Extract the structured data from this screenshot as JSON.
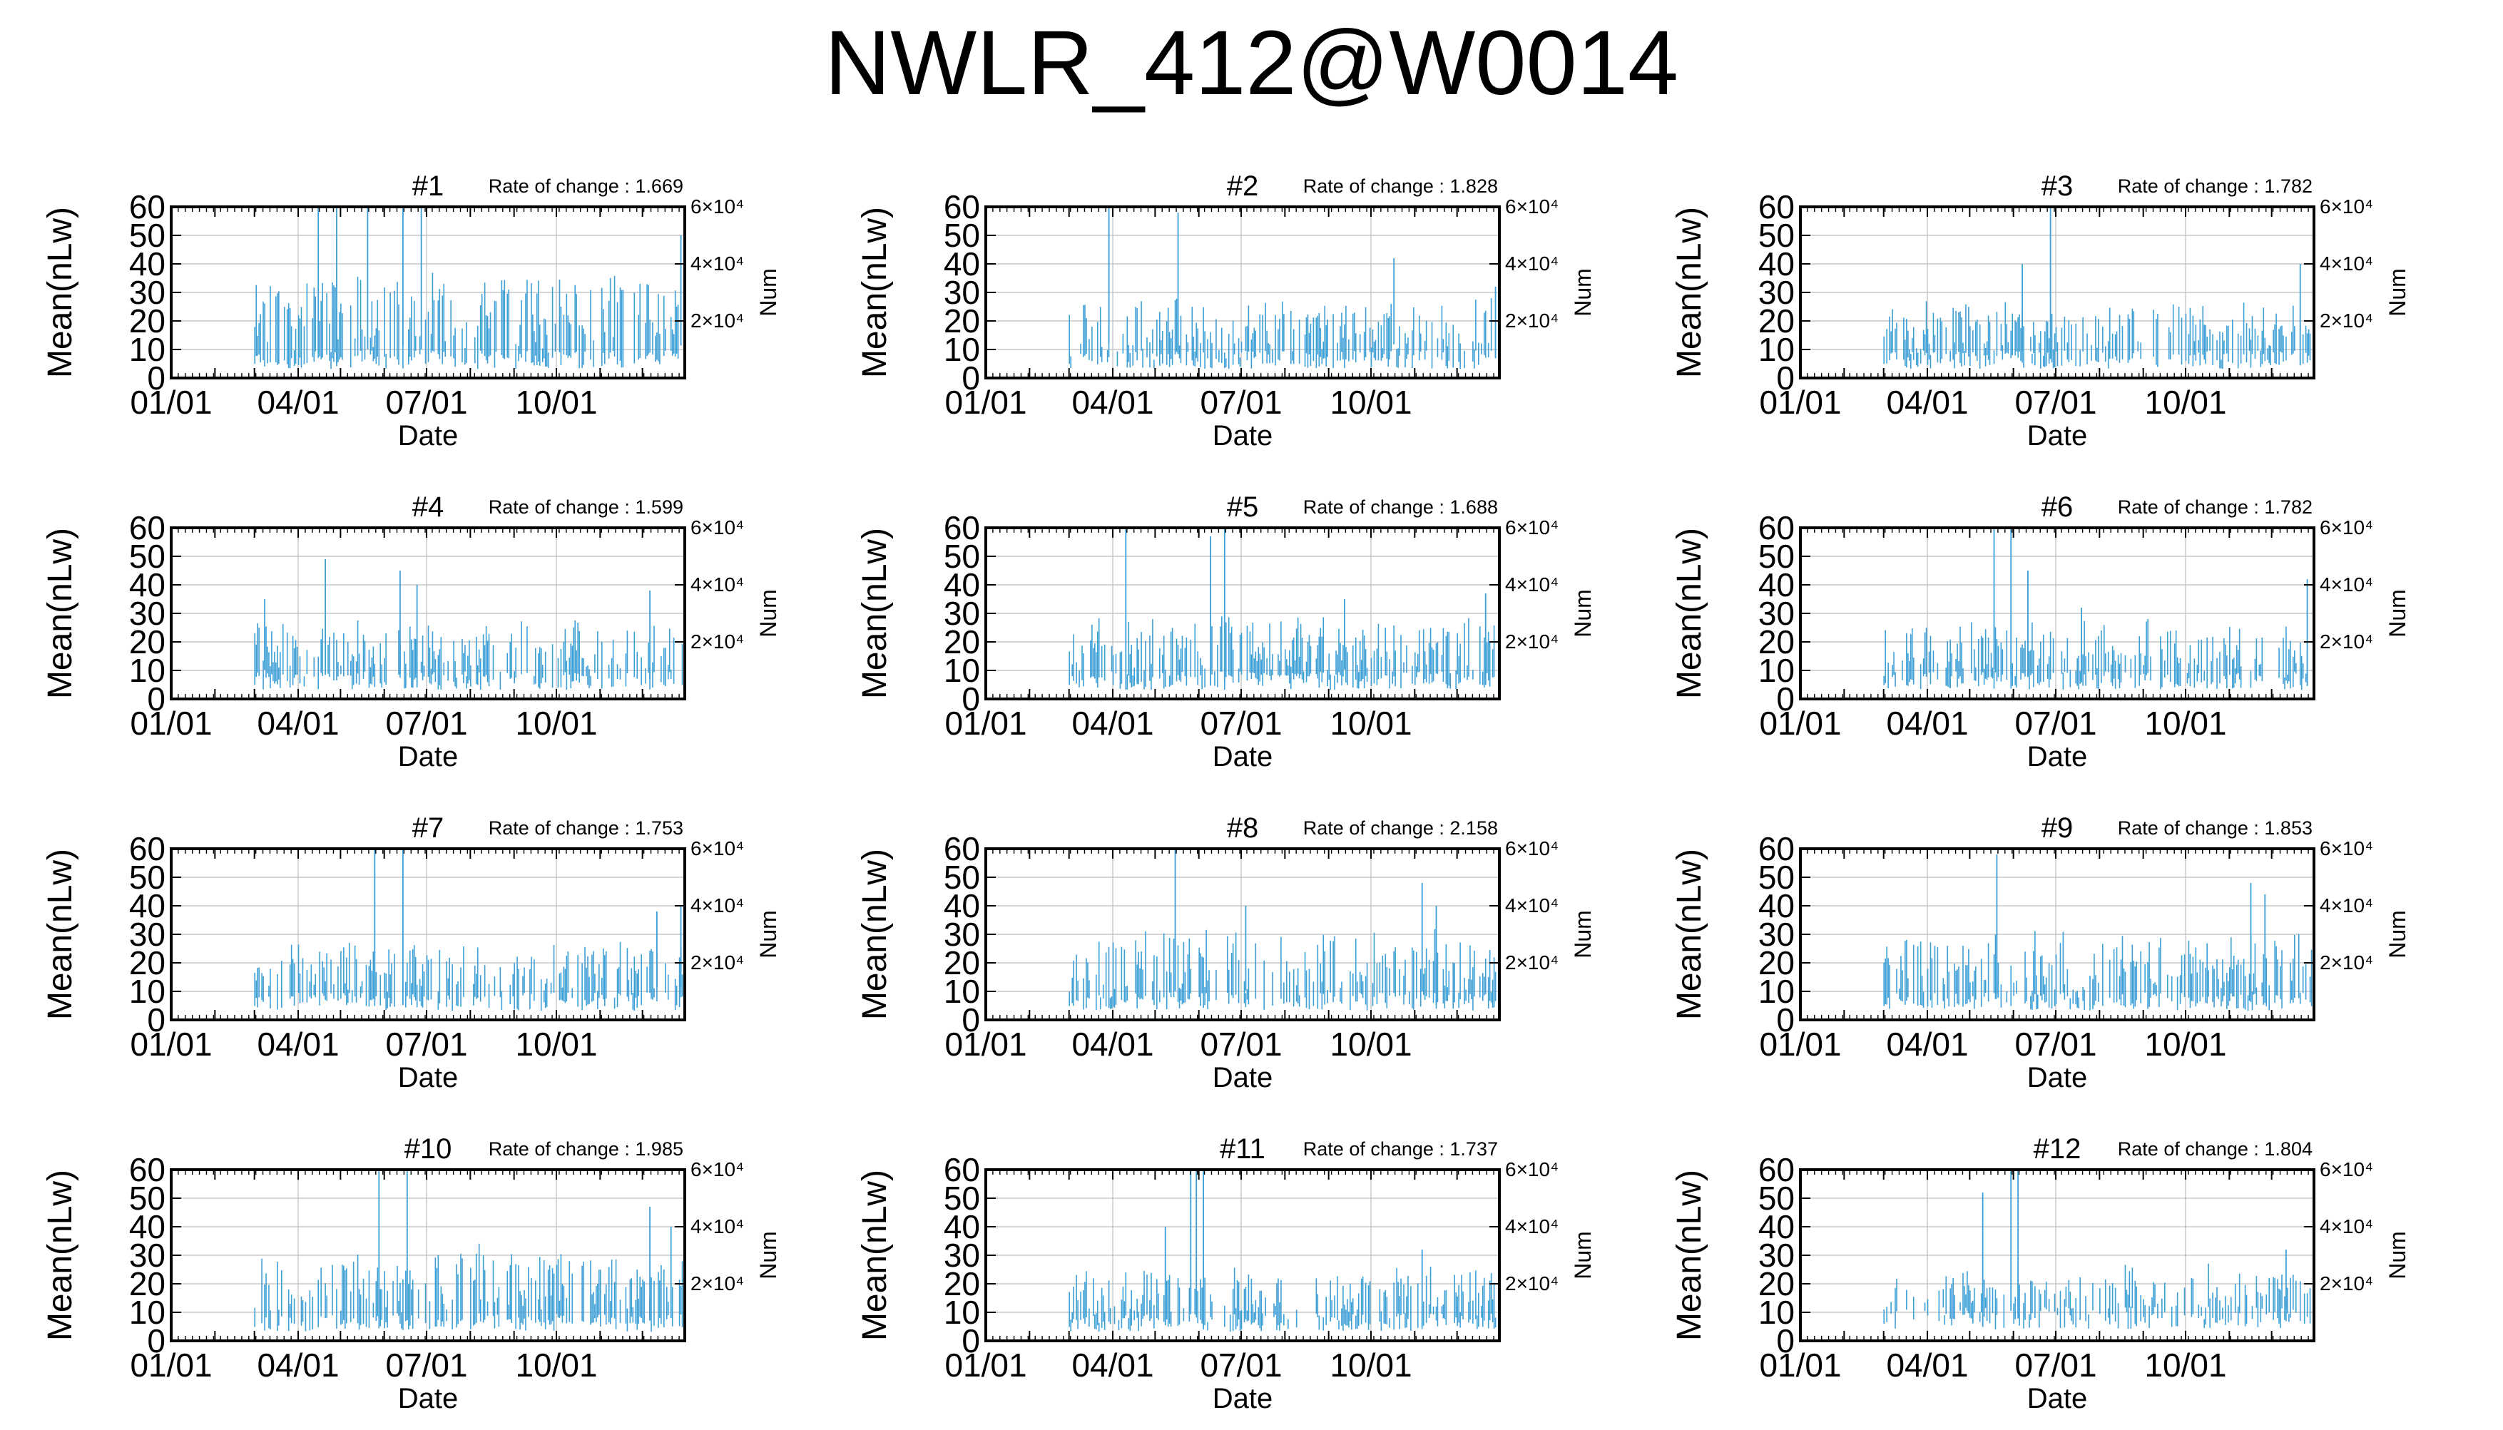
{
  "page": {
    "title": "NWLR_412@W0014"
  },
  "chart_data": [
    {
      "type": "bar",
      "title": "#1",
      "annotation": "Rate of change : 1.669",
      "xlabel": "Date",
      "ylabel": "Mean(nLw)",
      "y2label": "Num",
      "xticks": [
        "01/01",
        "04/01",
        "07/01",
        "10/01"
      ],
      "yticks": [
        "0",
        "10",
        "20",
        "30",
        "40",
        "50",
        "60"
      ],
      "ylim": [
        0,
        60
      ],
      "grid": true,
      "y2lim": [
        0,
        60000
      ],
      "y2ticks": [
        {
          "value": 20000,
          "label": "2×10⁴"
        },
        {
          "value": 40000,
          "label": "4×10⁴"
        },
        {
          "value": 60000,
          "label": "6×10⁴"
        }
      ],
      "x_range_days": [
        1,
        365
      ],
      "data_start_day": 60,
      "data_end_day": 363,
      "bar_color": "#3c9fd6",
      "density": 0.55,
      "seed": 11,
      "bands": [
        [
          8,
          38
        ]
      ],
      "spikes": [
        [
          105,
          60
        ],
        [
          118,
          60
        ],
        [
          140,
          60
        ],
        [
          165,
          60
        ],
        [
          178,
          60
        ],
        [
          362,
          50
        ]
      ]
    },
    {
      "type": "bar",
      "title": "#2",
      "annotation": "Rate of change : 1.828",
      "xlabel": "Date",
      "ylabel": "Mean(nLw)",
      "y2label": "Num",
      "xticks": [
        "01/01",
        "04/01",
        "07/01",
        "10/01"
      ],
      "yticks": [
        "0",
        "10",
        "20",
        "30",
        "40",
        "50",
        "60"
      ],
      "ylim": [
        0,
        60
      ],
      "grid": true,
      "y2lim": [
        0,
        60000
      ],
      "y2ticks": [
        {
          "value": 20000,
          "label": "2×10⁴"
        },
        {
          "value": 40000,
          "label": "4×10⁴"
        },
        {
          "value": 60000,
          "label": "6×10⁴"
        }
      ],
      "x_range_days": [
        1,
        365
      ],
      "data_start_day": 60,
      "data_end_day": 363,
      "bar_color": "#3c9fd6",
      "density": 0.55,
      "seed": 22,
      "bands": [
        [
          8,
          28
        ]
      ],
      "spikes": [
        [
          88,
          60
        ],
        [
          137,
          58
        ],
        [
          290,
          42
        ],
        [
          362,
          32
        ]
      ]
    },
    {
      "type": "bar",
      "title": "#3",
      "annotation": "Rate of change : 1.782",
      "xlabel": "Date",
      "ylabel": "Mean(nLw)",
      "y2label": "Num",
      "xticks": [
        "01/01",
        "04/01",
        "07/01",
        "10/01"
      ],
      "yticks": [
        "0",
        "10",
        "20",
        "30",
        "40",
        "50",
        "60"
      ],
      "ylim": [
        0,
        60
      ],
      "grid": true,
      "y2lim": [
        0,
        60000
      ],
      "y2ticks": [
        {
          "value": 20000,
          "label": "2×10⁴"
        },
        {
          "value": 40000,
          "label": "4×10⁴"
        },
        {
          "value": 60000,
          "label": "6×10⁴"
        }
      ],
      "x_range_days": [
        1,
        365
      ],
      "data_start_day": 60,
      "data_end_day": 363,
      "bar_color": "#3c9fd6",
      "density": 0.55,
      "seed": 33,
      "bands": [
        [
          8,
          28
        ]
      ],
      "spikes": [
        [
          158,
          40
        ],
        [
          178,
          60
        ],
        [
          355,
          40
        ]
      ]
    },
    {
      "type": "bar",
      "title": "#4",
      "annotation": "Rate of change : 1.599",
      "xlabel": "Date",
      "ylabel": "Mean(nLw)",
      "y2label": "Num",
      "xticks": [
        "01/01",
        "04/01",
        "07/01",
        "10/01"
      ],
      "yticks": [
        "0",
        "10",
        "20",
        "30",
        "40",
        "50",
        "60"
      ],
      "ylim": [
        0,
        60
      ],
      "grid": true,
      "y2lim": [
        0,
        60000
      ],
      "y2ticks": [
        {
          "value": 20000,
          "label": "2×10⁴"
        },
        {
          "value": 40000,
          "label": "4×10⁴"
        },
        {
          "value": 60000,
          "label": "6×10⁴"
        }
      ],
      "x_range_days": [
        1,
        365
      ],
      "data_start_day": 60,
      "data_end_day": 363,
      "bar_color": "#3c9fd6",
      "density": 0.55,
      "seed": 44,
      "bands": [
        [
          8,
          28
        ]
      ],
      "spikes": [
        [
          67,
          35
        ],
        [
          110,
          49
        ],
        [
          163,
          45
        ],
        [
          175,
          40
        ],
        [
          340,
          38
        ]
      ]
    },
    {
      "type": "bar",
      "title": "#5",
      "annotation": "Rate of change : 1.688",
      "xlabel": "Date",
      "ylabel": "Mean(nLw)",
      "y2label": "Num",
      "xticks": [
        "01/01",
        "04/01",
        "07/01",
        "10/01"
      ],
      "yticks": [
        "0",
        "10",
        "20",
        "30",
        "40",
        "50",
        "60"
      ],
      "ylim": [
        0,
        60
      ],
      "grid": true,
      "y2lim": [
        0,
        60000
      ],
      "y2ticks": [
        {
          "value": 20000,
          "label": "2×10⁴"
        },
        {
          "value": 40000,
          "label": "4×10⁴"
        },
        {
          "value": 60000,
          "label": "6×10⁴"
        }
      ],
      "x_range_days": [
        1,
        365
      ],
      "data_start_day": 60,
      "data_end_day": 363,
      "bar_color": "#3c9fd6",
      "density": 0.55,
      "seed": 55,
      "bands": [
        [
          8,
          30
        ]
      ],
      "spikes": [
        [
          100,
          60
        ],
        [
          160,
          57
        ],
        [
          170,
          60
        ],
        [
          255,
          35
        ],
        [
          355,
          37
        ]
      ]
    },
    {
      "type": "bar",
      "title": "#6",
      "annotation": "Rate of change : 1.782",
      "xlabel": "Date",
      "ylabel": "Mean(nLw)",
      "y2label": "Num",
      "xticks": [
        "01/01",
        "04/01",
        "07/01",
        "10/01"
      ],
      "yticks": [
        "0",
        "10",
        "20",
        "30",
        "40",
        "50",
        "60"
      ],
      "ylim": [
        0,
        60
      ],
      "grid": true,
      "y2lim": [
        0,
        60000
      ],
      "y2ticks": [
        {
          "value": 20000,
          "label": "2×10⁴"
        },
        {
          "value": 40000,
          "label": "4×10⁴"
        },
        {
          "value": 60000,
          "label": "6×10⁴"
        }
      ],
      "x_range_days": [
        1,
        365
      ],
      "data_start_day": 60,
      "data_end_day": 363,
      "bar_color": "#3c9fd6",
      "density": 0.55,
      "seed": 66,
      "bands": [
        [
          8,
          28
        ]
      ],
      "spikes": [
        [
          138,
          60
        ],
        [
          150,
          60
        ],
        [
          162,
          45
        ],
        [
          200,
          32
        ],
        [
          360,
          42
        ]
      ]
    },
    {
      "type": "bar",
      "title": "#7",
      "annotation": "Rate of change : 1.753",
      "xlabel": "Date",
      "ylabel": "Mean(nLw)",
      "y2label": "Num",
      "xticks": [
        "01/01",
        "04/01",
        "07/01",
        "10/01"
      ],
      "yticks": [
        "0",
        "10",
        "20",
        "30",
        "40",
        "50",
        "60"
      ],
      "ylim": [
        0,
        60
      ],
      "grid": true,
      "y2lim": [
        0,
        60000
      ],
      "y2ticks": [
        {
          "value": 20000,
          "label": "2×10⁴"
        },
        {
          "value": 40000,
          "label": "4×10⁴"
        },
        {
          "value": 60000,
          "label": "6×10⁴"
        }
      ],
      "x_range_days": [
        1,
        365
      ],
      "data_start_day": 60,
      "data_end_day": 363,
      "bar_color": "#3c9fd6",
      "density": 0.55,
      "seed": 77,
      "bands": [
        [
          8,
          28
        ]
      ],
      "spikes": [
        [
          145,
          60
        ],
        [
          165,
          60
        ],
        [
          345,
          38
        ],
        [
          362,
          40
        ]
      ]
    },
    {
      "type": "bar",
      "title": "#8",
      "annotation": "Rate of change : 2.158",
      "xlabel": "Date",
      "ylabel": "Mean(nLw)",
      "y2label": "Num",
      "xticks": [
        "01/01",
        "04/01",
        "07/01",
        "10/01"
      ],
      "yticks": [
        "0",
        "10",
        "20",
        "30",
        "40",
        "50",
        "60"
      ],
      "ylim": [
        0,
        60
      ],
      "grid": true,
      "y2lim": [
        0,
        60000
      ],
      "y2ticks": [
        {
          "value": 20000,
          "label": "2×10⁴"
        },
        {
          "value": 40000,
          "label": "4×10⁴"
        },
        {
          "value": 60000,
          "label": "6×10⁴"
        }
      ],
      "x_range_days": [
        1,
        365
      ],
      "data_start_day": 60,
      "data_end_day": 363,
      "bar_color": "#3c9fd6",
      "density": 0.55,
      "seed": 88,
      "bands": [
        [
          8,
          32
        ]
      ],
      "spikes": [
        [
          135,
          60
        ],
        [
          185,
          40
        ],
        [
          310,
          48
        ],
        [
          320,
          40
        ]
      ]
    },
    {
      "type": "bar",
      "title": "#9",
      "annotation": "Rate of change : 1.853",
      "xlabel": "Date",
      "ylabel": "Mean(nLw)",
      "y2label": "Num",
      "xticks": [
        "01/01",
        "04/01",
        "07/01",
        "10/01"
      ],
      "yticks": [
        "0",
        "10",
        "20",
        "30",
        "40",
        "50",
        "60"
      ],
      "ylim": [
        0,
        60
      ],
      "grid": true,
      "y2lim": [
        0,
        60000
      ],
      "y2ticks": [
        {
          "value": 20000,
          "label": "2×10⁴"
        },
        {
          "value": 40000,
          "label": "4×10⁴"
        },
        {
          "value": 60000,
          "label": "6×10⁴"
        }
      ],
      "x_range_days": [
        1,
        365
      ],
      "data_start_day": 60,
      "data_end_day": 363,
      "bar_color": "#3c9fd6",
      "density": 0.55,
      "seed": 99,
      "bands": [
        [
          8,
          32
        ]
      ],
      "spikes": [
        [
          140,
          58
        ],
        [
          320,
          48
        ],
        [
          330,
          44
        ]
      ]
    },
    {
      "type": "bar",
      "title": "#10",
      "annotation": "Rate of change : 1.985",
      "xlabel": "Date",
      "ylabel": "Mean(nLw)",
      "y2label": "Num",
      "xticks": [
        "01/01",
        "04/01",
        "07/01",
        "10/01"
      ],
      "yticks": [
        "0",
        "10",
        "20",
        "30",
        "40",
        "50",
        "60"
      ],
      "ylim": [
        0,
        60
      ],
      "grid": true,
      "y2lim": [
        0,
        60000
      ],
      "y2ticks": [
        {
          "value": 20000,
          "label": "2×10⁴"
        },
        {
          "value": 40000,
          "label": "4×10⁴"
        },
        {
          "value": 60000,
          "label": "6×10⁴"
        }
      ],
      "x_range_days": [
        1,
        365
      ],
      "data_start_day": 60,
      "data_end_day": 363,
      "bar_color": "#3c9fd6",
      "density": 0.55,
      "seed": 110,
      "bands": [
        [
          8,
          34
        ]
      ],
      "spikes": [
        [
          148,
          60
        ],
        [
          168,
          60
        ],
        [
          340,
          47
        ],
        [
          355,
          40
        ]
      ]
    },
    {
      "type": "bar",
      "title": "#11",
      "annotation": "Rate of change : 1.737",
      "xlabel": "Date",
      "ylabel": "Mean(nLw)",
      "y2label": "Num",
      "xticks": [
        "01/01",
        "04/01",
        "07/01",
        "10/01"
      ],
      "yticks": [
        "0",
        "10",
        "20",
        "30",
        "40",
        "50",
        "60"
      ],
      "ylim": [
        0,
        60
      ],
      "grid": true,
      "y2lim": [
        0,
        60000
      ],
      "y2ticks": [
        {
          "value": 20000,
          "label": "2×10⁴"
        },
        {
          "value": 40000,
          "label": "4×10⁴"
        },
        {
          "value": 60000,
          "label": "6×10⁴"
        }
      ],
      "x_range_days": [
        1,
        365
      ],
      "data_start_day": 60,
      "data_end_day": 363,
      "bar_color": "#3c9fd6",
      "density": 0.55,
      "seed": 121,
      "bands": [
        [
          8,
          26
        ]
      ],
      "spikes": [
        [
          128,
          40
        ],
        [
          146,
          60
        ],
        [
          150,
          60
        ],
        [
          155,
          60
        ],
        [
          310,
          32
        ]
      ]
    },
    {
      "type": "bar",
      "title": "#12",
      "annotation": "Rate of change : 1.804",
      "xlabel": "Date",
      "ylabel": "Mean(nLw)",
      "y2label": "Num",
      "xticks": [
        "01/01",
        "04/01",
        "07/01",
        "10/01"
      ],
      "yticks": [
        "0",
        "10",
        "20",
        "30",
        "40",
        "50",
        "60"
      ],
      "ylim": [
        0,
        60
      ],
      "grid": true,
      "y2lim": [
        0,
        60000
      ],
      "y2ticks": [
        {
          "value": 20000,
          "label": "2×10⁴"
        },
        {
          "value": 40000,
          "label": "4×10⁴"
        },
        {
          "value": 60000,
          "label": "6×10⁴"
        }
      ],
      "x_range_days": [
        1,
        365
      ],
      "data_start_day": 60,
      "data_end_day": 363,
      "bar_color": "#3c9fd6",
      "density": 0.45,
      "seed": 132,
      "bands": [
        [
          10,
          26
        ]
      ],
      "spikes": [
        [
          130,
          52
        ],
        [
          150,
          60
        ],
        [
          155,
          60
        ],
        [
          345,
          32
        ]
      ]
    }
  ]
}
